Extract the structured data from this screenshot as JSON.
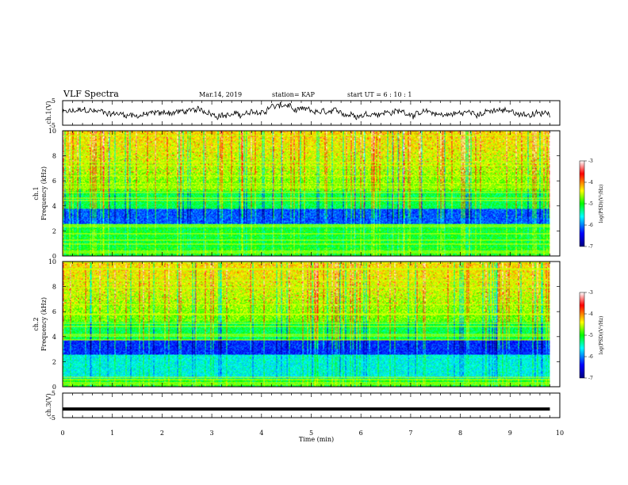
{
  "header": {
    "title": "VLF Spectra",
    "date": "Mar.14, 2019",
    "station": "station= KAP",
    "start": "start  UT =   6  : 10 : 1"
  },
  "chart_data": [
    {
      "type": "line",
      "name": "ch1-waveform",
      "ylabel": "ch.1(V)",
      "ylim": [
        -5,
        5
      ],
      "yticks": [
        "5",
        "-5"
      ],
      "xlim": [
        0,
        10
      ],
      "x_end": 9.8,
      "color": "#000000"
    },
    {
      "type": "heatmap",
      "name": "ch1-spectrogram",
      "ylabel": "ch.1\nFrequency (kHz)",
      "ylabel_line1": "ch.1",
      "ylabel_line2": "Frequency (kHz)",
      "ylim": [
        0,
        10
      ],
      "yticks": [
        "0",
        "2",
        "4",
        "6",
        "8",
        "10"
      ],
      "xlim": [
        0,
        10
      ],
      "x_end": 9.8,
      "colorbar": {
        "label": "log(PSD)(V²/Hz)",
        "ticks": [
          "-3",
          "-4",
          "-5",
          "-6",
          "-7"
        ],
        "range": [
          -7,
          -3
        ]
      }
    },
    {
      "type": "heatmap",
      "name": "ch2-spectrogram",
      "ylabel": "ch.2\nFrequency (kHz)",
      "ylabel_line1": "ch.2",
      "ylabel_line2": "Frequency (kHz)",
      "ylim": [
        0,
        10
      ],
      "yticks": [
        "0",
        "2",
        "4",
        "6",
        "8",
        "10"
      ],
      "xlim": [
        0,
        10
      ],
      "x_end": 9.8,
      "colorbar": {
        "label": "log(PSD)(V²/Hz)",
        "ticks": [
          "-3",
          "-4",
          "-5",
          "-6",
          "-7"
        ],
        "range": [
          -7,
          -3
        ]
      }
    },
    {
      "type": "line",
      "name": "ch3-waveform",
      "ylabel": "ch.3(V)",
      "ylim": [
        -5,
        5
      ],
      "yticks": [
        "5",
        "-5"
      ],
      "xlim": [
        0,
        10
      ],
      "value": -1.5,
      "color": "#000000"
    }
  ],
  "xaxis": {
    "label": "Time  (min)",
    "ticks": [
      "0",
      "1",
      "2",
      "3",
      "4",
      "5",
      "6",
      "7",
      "8",
      "9",
      "10"
    ]
  }
}
